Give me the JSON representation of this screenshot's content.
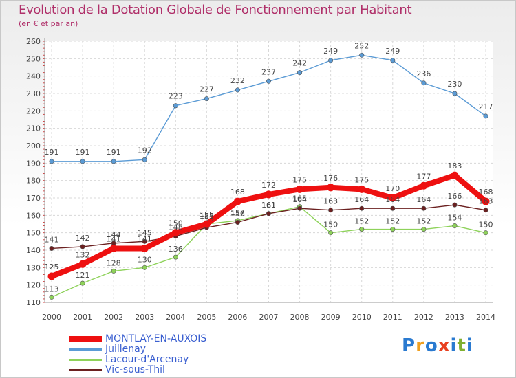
{
  "title": "Evolution de la Dotation Globale de Fonctionnement par Habitant",
  "subtitle": "(en € et par an)",
  "logo": {
    "text": "Proxiti",
    "letters": [
      "P",
      "r",
      "o",
      "x",
      "i",
      "t",
      "i"
    ],
    "colors": [
      "#2a7ad0",
      "#f0a020",
      "#2a7ad0",
      "#e84020",
      "#2a7ad0",
      "#80b030",
      "#2a7ad0"
    ]
  },
  "chart_data": {
    "type": "line",
    "title": "Evolution de la Dotation Globale de Fonctionnement par Habitant",
    "ylabel": "(en € et par an)",
    "x": [
      2000,
      2001,
      2002,
      2003,
      2004,
      2005,
      2006,
      2007,
      2008,
      2009,
      2010,
      2011,
      2012,
      2013,
      2014
    ],
    "ylim": [
      110,
      260
    ],
    "yticks": [
      110,
      120,
      130,
      140,
      150,
      160,
      170,
      180,
      190,
      200,
      210,
      220,
      230,
      240,
      250,
      260
    ],
    "grid": true,
    "series": [
      {
        "name": "Juillenay",
        "color": "#5b9bd5",
        "values": [
          191,
          191,
          191,
          192,
          223,
          227,
          232,
          237,
          242,
          249,
          252,
          249,
          236,
          230,
          217
        ]
      },
      {
        "name": "Lacour-d'Arcenay",
        "color": "#8ed25a",
        "values": [
          113,
          121,
          128,
          130,
          136,
          155,
          157,
          161,
          165,
          150,
          152,
          152,
          152,
          154,
          150
        ]
      },
      {
        "name": "Vic-sous-Thil",
        "color": "#6b2020",
        "values": [
          141,
          142,
          144,
          145,
          148,
          153,
          156,
          161,
          164,
          163,
          164,
          164,
          164,
          166,
          163
        ]
      },
      {
        "name": "MONTLAY-EN-AUXOIS",
        "color": "#ee1010",
        "values": [
          125,
          132,
          141,
          141,
          150,
          155,
          168,
          172,
          175,
          176,
          175,
          170,
          177,
          183,
          168
        ]
      }
    ],
    "labels": {
      "Juillenay": [
        "191",
        "191",
        "191",
        "192",
        "223",
        "227",
        "232",
        "237",
        "242",
        "249",
        "252",
        "249",
        "236",
        "230",
        "217"
      ],
      "Lacour-d'Arcenay": [
        "113",
        "121",
        "128",
        "130",
        "136",
        "155",
        "157",
        "161",
        "165",
        "150",
        "152",
        "152",
        "152",
        "154",
        "150"
      ],
      "Vic-sous-Thil": [
        "141",
        "142",
        "144",
        "145",
        "148",
        "153",
        "156",
        "161",
        "164",
        "163",
        "164",
        "164",
        "164",
        "166",
        "163"
      ],
      "MONTLAY-EN-AUXOIS": [
        "125",
        "132",
        "141",
        "141",
        "150",
        "155",
        "168",
        "172",
        "175",
        "176",
        "175",
        "170",
        "177",
        "183",
        "168"
      ]
    },
    "legend": [
      {
        "name": "MONTLAY-EN-AUXOIS",
        "color": "#ee1010"
      },
      {
        "name": "Juillenay",
        "color": "#5b9bd5"
      },
      {
        "name": "Lacour-d'Arcenay",
        "color": "#8ed25a"
      },
      {
        "name": "Vic-sous-Thil",
        "color": "#6b2020"
      }
    ]
  }
}
